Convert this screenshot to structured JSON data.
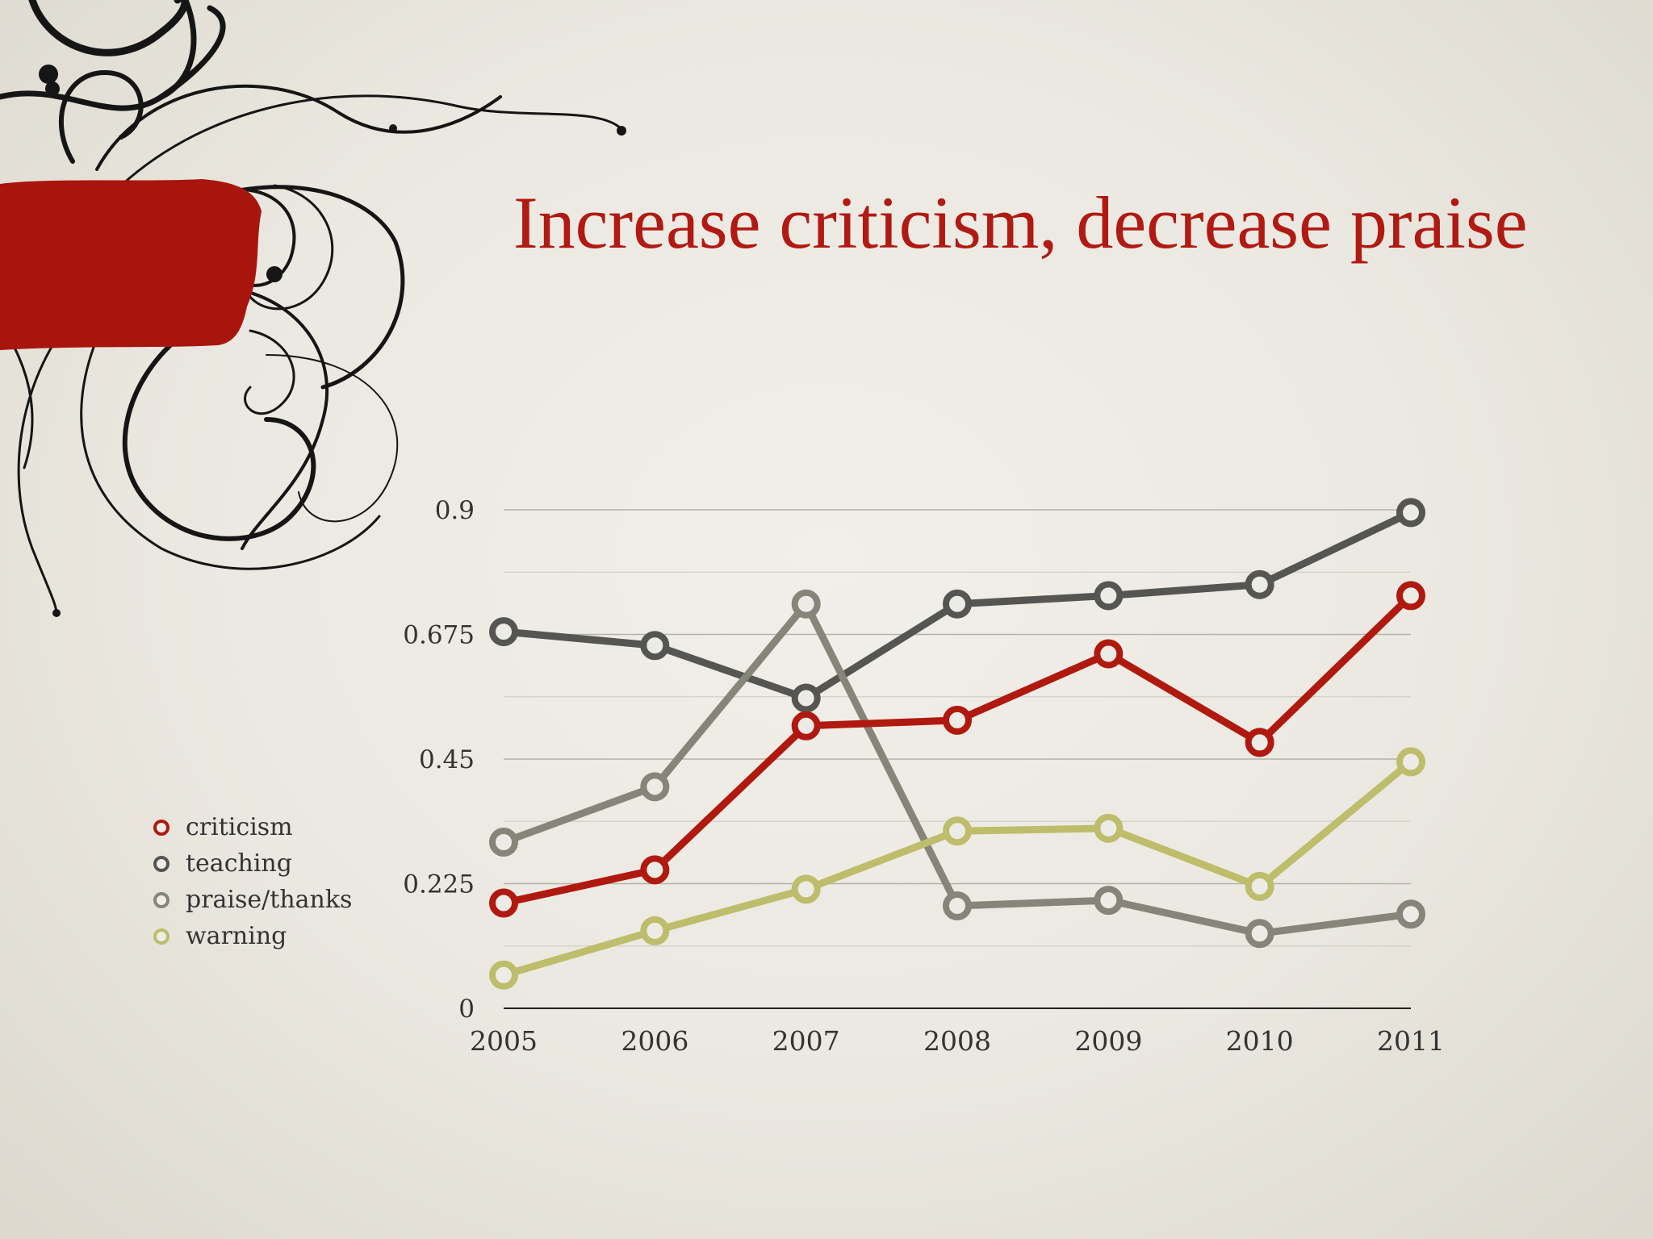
{
  "slide": {
    "title": "Increase criticism, decrease praise"
  },
  "colors": {
    "title": "#b01a12",
    "criticism": "#b0190f",
    "teaching": "#555552",
    "praise_thanks": "#858579",
    "warning": "#bdbd6b",
    "paint": "#a8150c",
    "swirl": "#151515"
  },
  "chart_data": {
    "type": "line",
    "x": [
      "2005",
      "2006",
      "2007",
      "2008",
      "2009",
      "2010",
      "2011"
    ],
    "yticks": [
      "0",
      "0.225",
      "0.45",
      "0.675",
      "0.9"
    ],
    "ylim": [
      0,
      0.9
    ],
    "grid": true,
    "legend_position": "left",
    "series": [
      {
        "name": "teaching",
        "color": "#555552",
        "values": [
          0.68,
          0.655,
          0.56,
          0.73,
          0.745,
          0.765,
          0.895
        ]
      },
      {
        "name": "praise/thanks",
        "color": "#858579",
        "values": [
          0.3,
          0.4,
          0.73,
          0.185,
          0.195,
          0.135,
          0.17
        ]
      },
      {
        "name": "criticism",
        "color": "#b0190f",
        "values": [
          0.19,
          0.25,
          0.51,
          0.52,
          0.64,
          0.48,
          0.745
        ]
      },
      {
        "name": "warning",
        "color": "#bdbd6b",
        "values": [
          0.06,
          0.14,
          0.215,
          0.32,
          0.325,
          0.22,
          0.445
        ]
      }
    ],
    "legend_order": [
      "criticism",
      "teaching",
      "praise/thanks",
      "warning"
    ]
  }
}
